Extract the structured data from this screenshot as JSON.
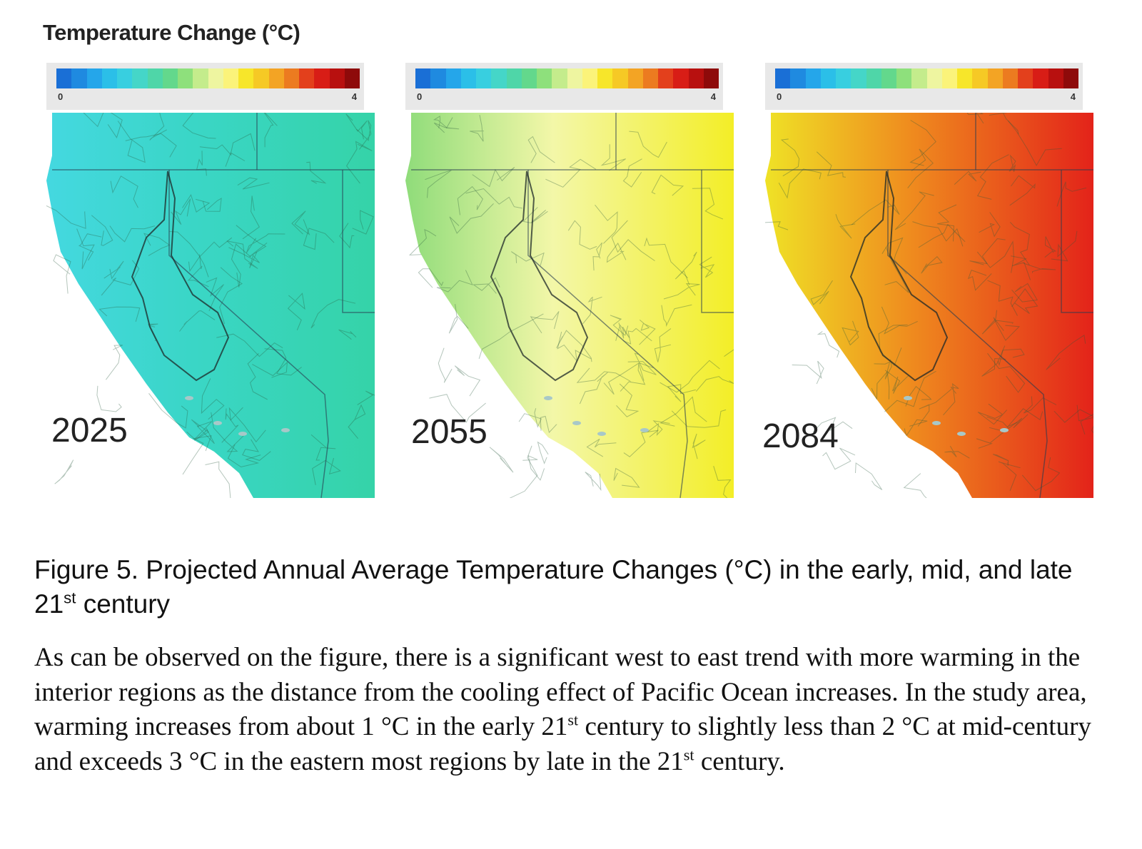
{
  "legend": {
    "title": "Temperature Change (°C)",
    "min_label": "0",
    "max_label": "4",
    "colors": [
      "#1a6fd6",
      "#1f8ae0",
      "#25a6ea",
      "#2bbfe8",
      "#38cfe0",
      "#45d6c8",
      "#4fd6a8",
      "#63d88c",
      "#8ee07c",
      "#c4ec8c",
      "#eef5a0",
      "#fbf37a",
      "#f7e62a",
      "#f6c925",
      "#f3a424",
      "#ec7b20",
      "#e3401c",
      "#d81d16",
      "#b8100f",
      "#8e0a0a"
    ]
  },
  "panels": [
    {
      "year": "2025",
      "colors": {
        "west": "#44d8e0",
        "mid": "#3ad6c6",
        "east": "#35d3a8"
      }
    },
    {
      "year": "2055",
      "colors": {
        "west": "#8fdc7a",
        "mid": "#f3f7a8",
        "east": "#f3ee27"
      }
    },
    {
      "year": "2084",
      "colors": {
        "west": "#efe226",
        "mid": "#ef8a1e",
        "east": "#e3231a"
      }
    }
  ],
  "caption": {
    "pre": "Figure 5.  Projected Annual Average Temperature Changes (°C) in the early, mid, and late 21",
    "sup": "st",
    "post": " century"
  },
  "body": {
    "p1": "As can be observed on the figure, there is a significant west to east trend with more warming in the interior regions as the distance from the cooling effect of Pacific Ocean increases.  In the study area, warming increases from about 1 °C in the early 21",
    "sup1": "st",
    "p2": " century to slightly less than 2 °C at mid-century and exceeds 3 °C in the eastern most regions by late in the 21",
    "sup2": "st",
    "p3": " century."
  }
}
